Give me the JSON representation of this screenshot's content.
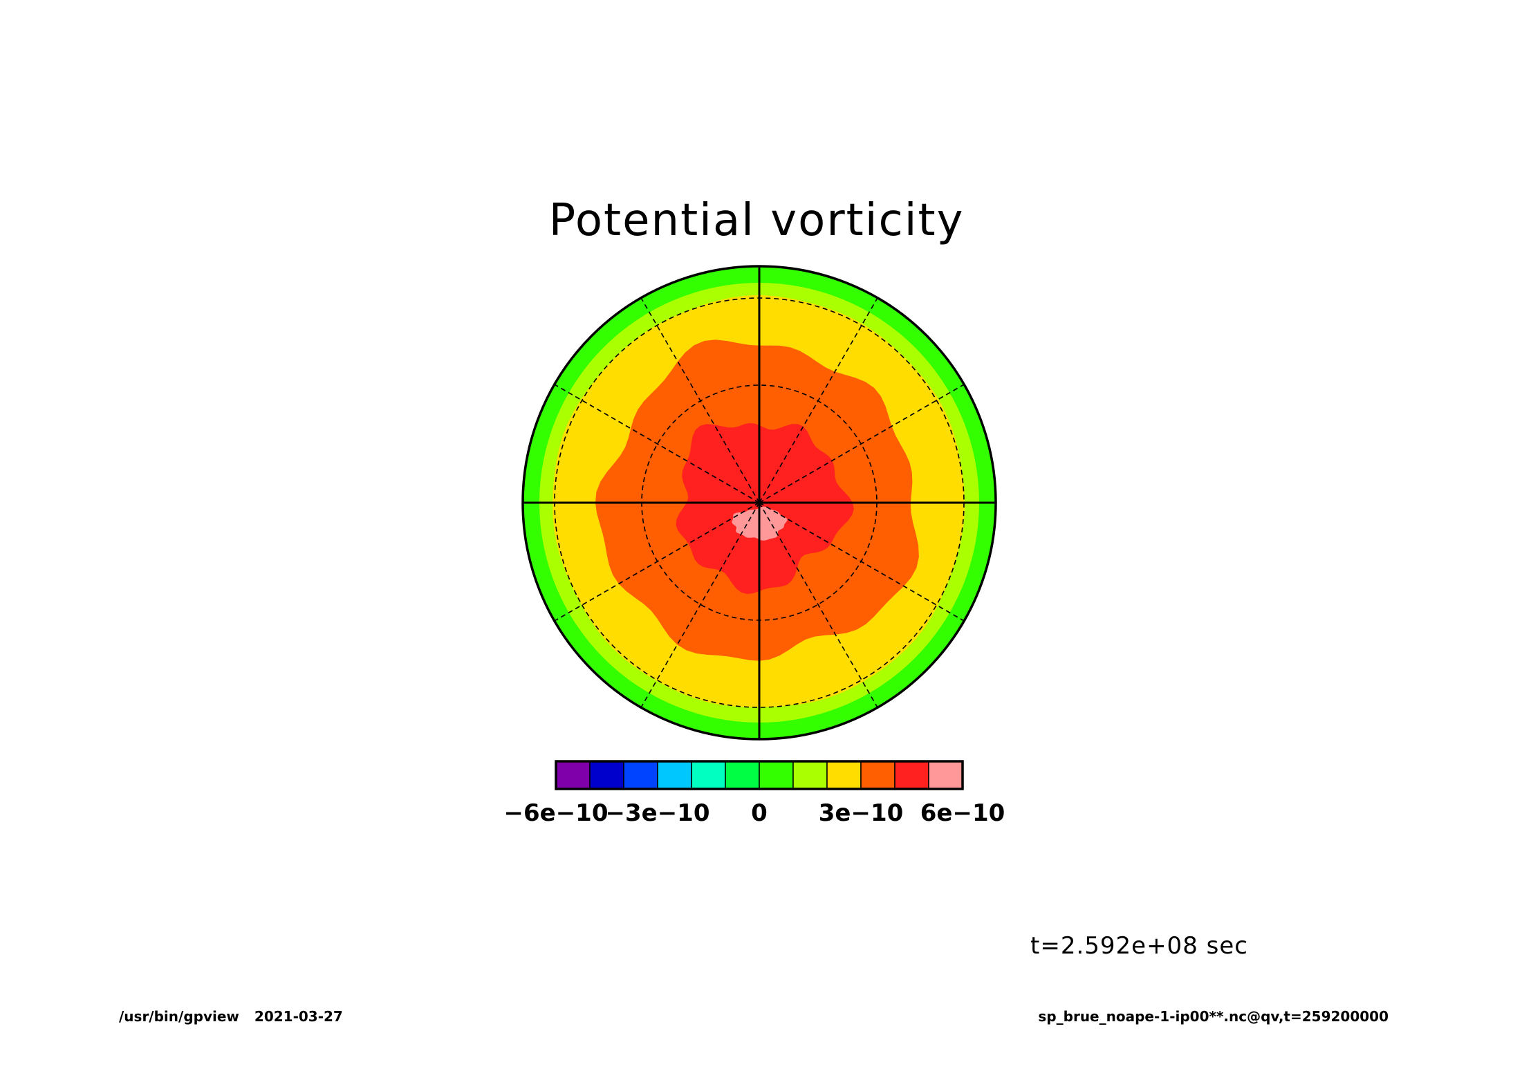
{
  "chart_data": {
    "type": "heatmap",
    "projection": "polar stereographic",
    "title": "Potential vorticity",
    "time_label": "t=2.592e+08 sec",
    "colorbar": {
      "levels": [
        -6e-10,
        -5e-10,
        -4e-10,
        -3e-10,
        -2e-10,
        -1e-10,
        0,
        1e-10,
        2e-10,
        3e-10,
        4e-10,
        5e-10,
        6e-10
      ],
      "colors": [
        "#7f00aa",
        "#0000cc",
        "#0044ff",
        "#00c8ff",
        "#00ffc0",
        "#00ff44",
        "#33ff00",
        "#aaff00",
        "#ffdd00",
        "#ff5f00",
        "#ff2020",
        "#ff9999"
      ],
      "tick_labels": [
        {
          "value": -6e-10,
          "label": "−6e−10"
        },
        {
          "value": -3e-10,
          "label": "−3e−10"
        },
        {
          "value": 0,
          "label": "0"
        },
        {
          "value": 3e-10,
          "label": "3e−10"
        },
        {
          "value": 6e-10,
          "label": "6e−10"
        }
      ]
    },
    "field_bands": [
      {
        "level_min": 0,
        "level_max": 1e-10,
        "color": "#33ff00",
        "region": "outer ring"
      },
      {
        "level_min": 1e-10,
        "level_max": 2e-10,
        "color": "#aaff00",
        "region": "ring"
      },
      {
        "level_min": 2e-10,
        "level_max": 3e-10,
        "color": "#ffdd00",
        "region": "broad ring"
      },
      {
        "level_min": 3e-10,
        "level_max": 4e-10,
        "color": "#ff5f00",
        "region": "polar cap"
      },
      {
        "level_min": 4e-10,
        "level_max": 5e-10,
        "color": "#ff2020",
        "region": "near pole"
      },
      {
        "level_min": 5e-10,
        "level_max": 6e-10,
        "color": "#ff9999",
        "region": "pole patch"
      }
    ],
    "grid": true
  },
  "footer": {
    "program": "/usr/bin/gpview",
    "date": "2021-03-27",
    "source": "sp_brue_noape-1-ip00**.nc@qv,t=259200000"
  }
}
